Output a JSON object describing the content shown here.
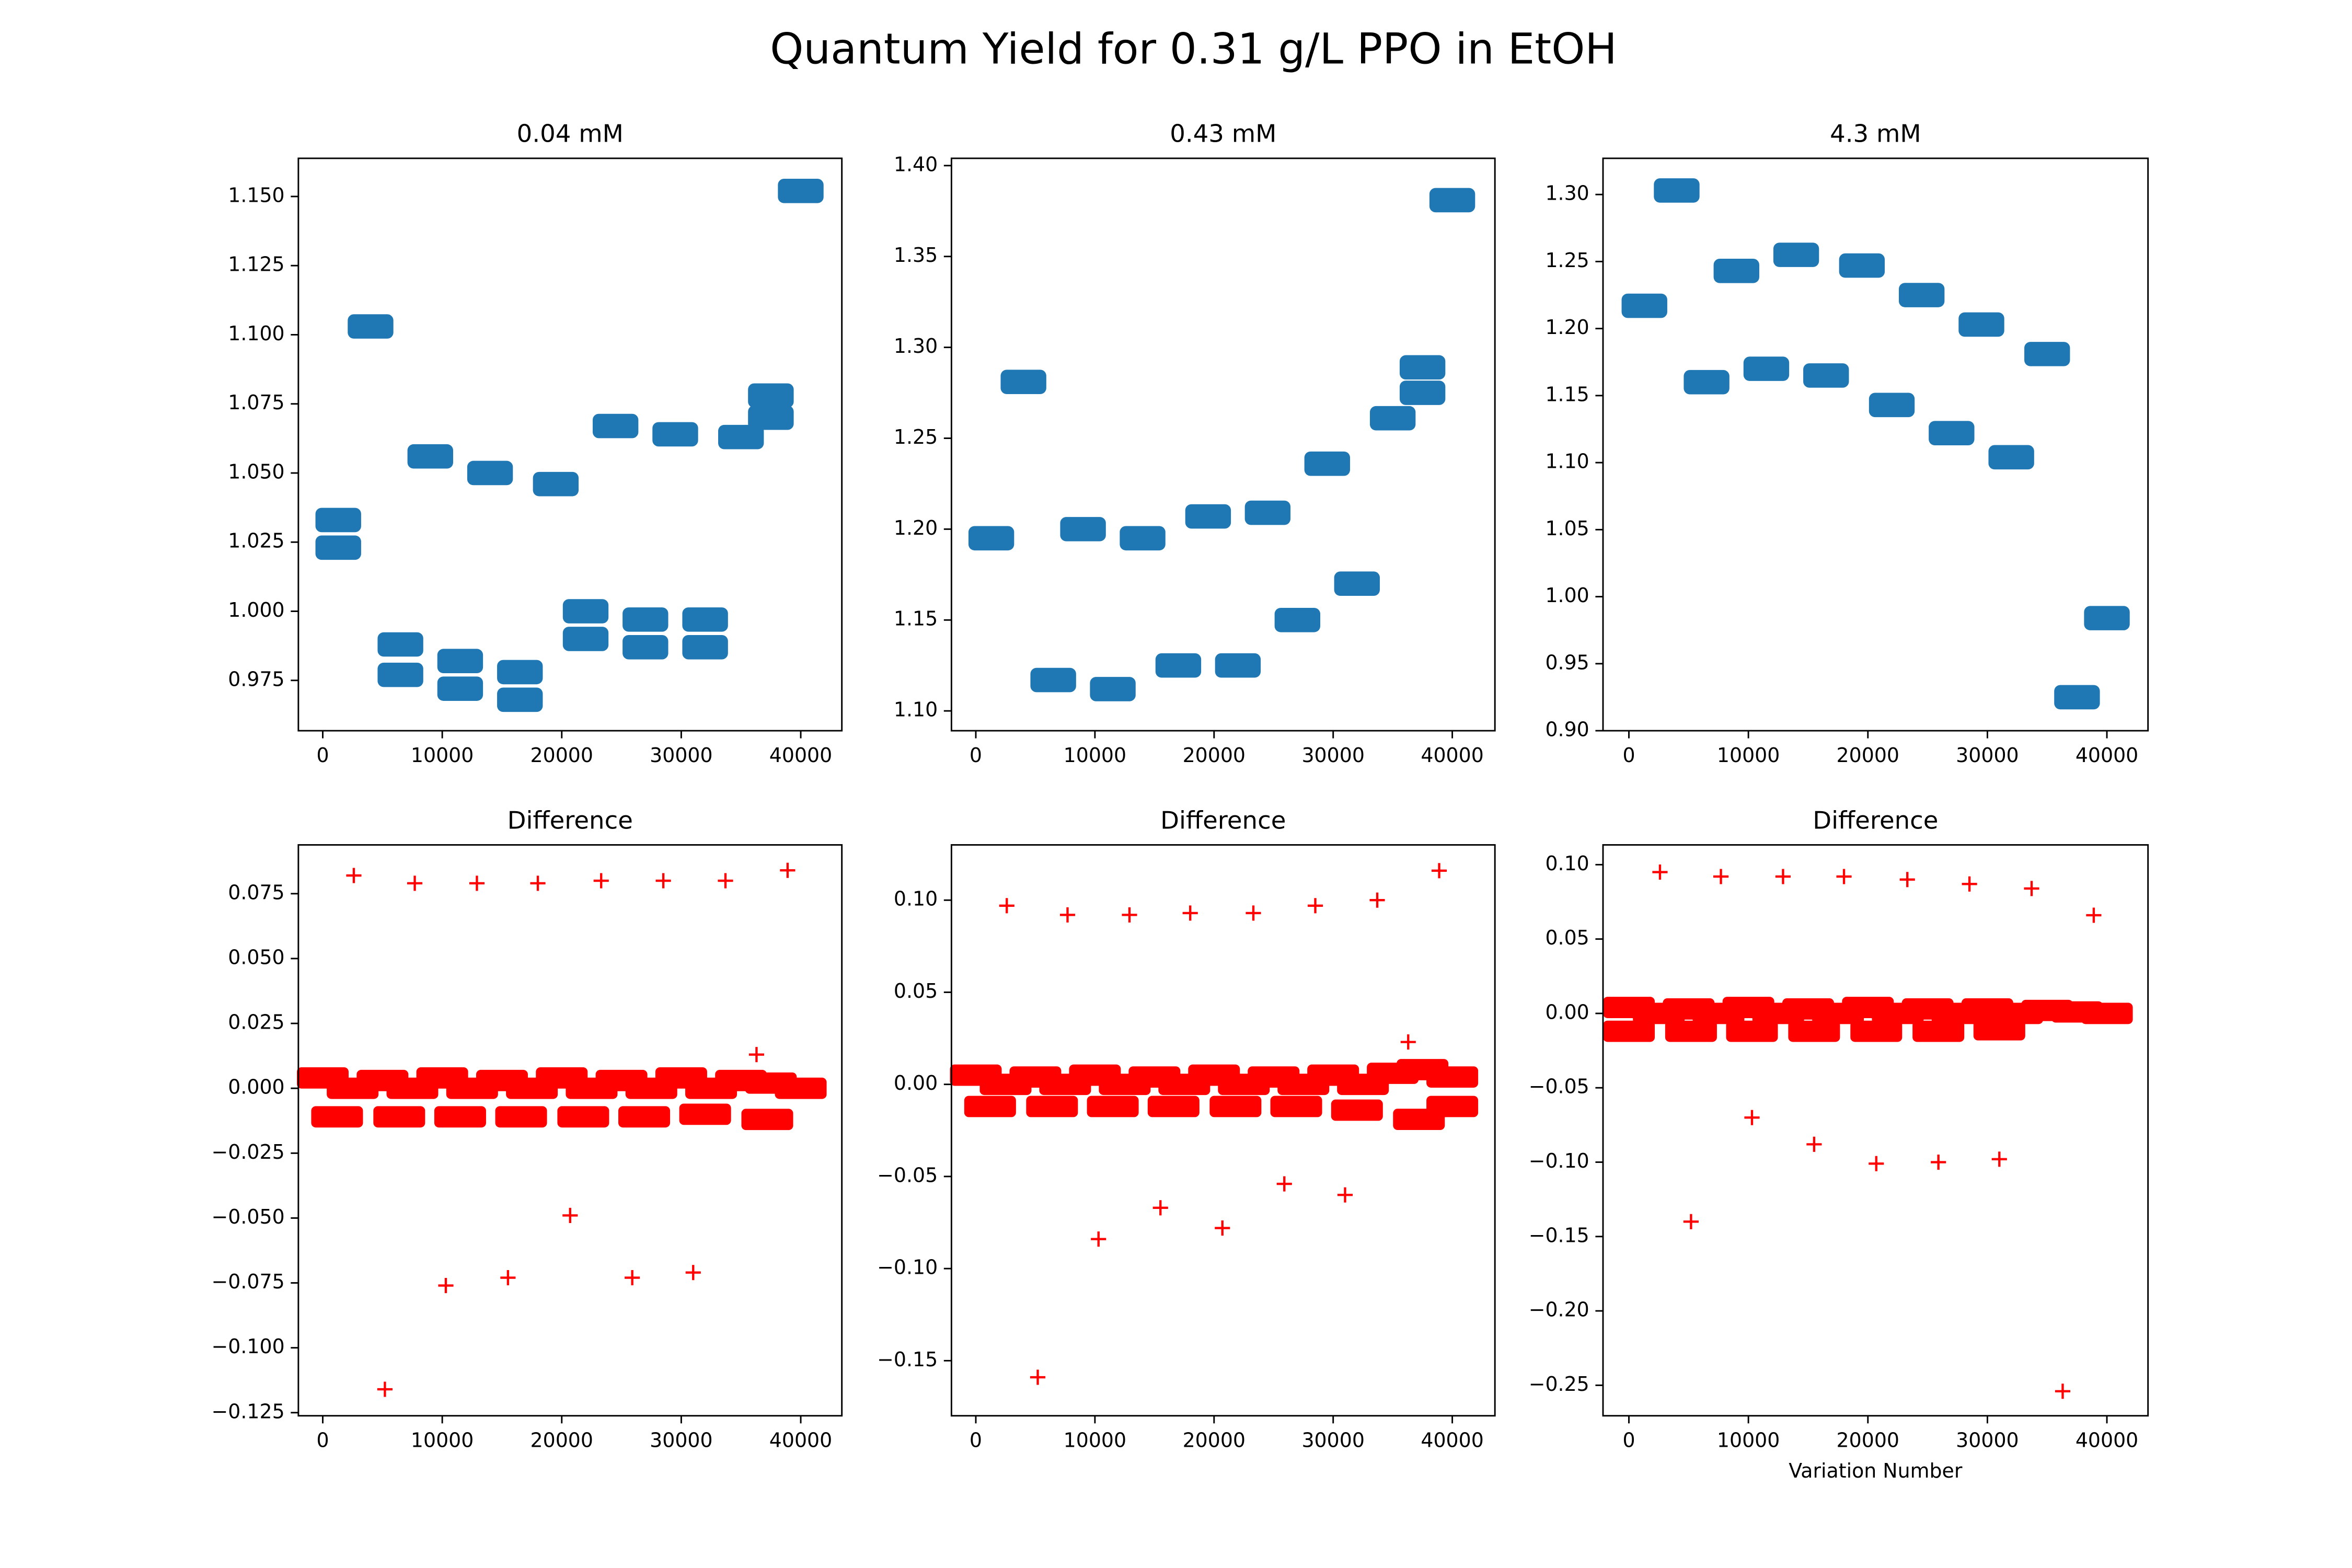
{
  "title": "Quantum Yield for 0.31 g/L PPO in EtOH",
  "chart_data": [
    {
      "type": "scatter",
      "title": "0.04 mM",
      "xlim": [
        -2040,
        43440
      ],
      "ylim": [
        0.9568,
        1.1638
      ],
      "xticks": [
        0,
        10000,
        20000,
        30000,
        40000
      ],
      "yticks": [
        {
          "value": 0.975,
          "label": "0.975"
        },
        {
          "value": 1.0,
          "label": "1.000"
        },
        {
          "value": 1.025,
          "label": "1.025"
        },
        {
          "value": 1.05,
          "label": "1.050"
        },
        {
          "value": 1.075,
          "label": "1.075"
        },
        {
          "value": 1.1,
          "label": "1.100"
        },
        {
          "value": 1.125,
          "label": "1.125"
        },
        {
          "value": 1.15,
          "label": "1.150"
        }
      ],
      "series": [
        {
          "color": "#1f77b4",
          "marker": "blob",
          "x": [
            1300,
            1300,
            4000,
            6500,
            6500,
            9000,
            11500,
            11500,
            14000,
            16500,
            16500,
            19500,
            22000,
            22000,
            24500,
            27000,
            27000,
            29500,
            32000,
            32000,
            35000,
            37500,
            37500,
            40000
          ],
          "values": [
            1.023,
            1.033,
            1.103,
            0.977,
            0.988,
            1.056,
            0.972,
            0.982,
            1.05,
            0.968,
            0.978,
            1.046,
            0.99,
            1.0,
            1.067,
            0.987,
            0.997,
            1.064,
            0.987,
            0.997,
            1.063,
            1.07,
            1.078,
            1.152
          ]
        }
      ]
    },
    {
      "type": "scatter",
      "title": "0.43 mM",
      "xlim": [
        -2045,
        43580
      ],
      "ylim": [
        1.0891,
        1.404
      ],
      "xticks": [
        0,
        10000,
        20000,
        30000,
        40000
      ],
      "yticks": [
        {
          "value": 1.1,
          "label": "1.10"
        },
        {
          "value": 1.15,
          "label": "1.15"
        },
        {
          "value": 1.2,
          "label": "1.20"
        },
        {
          "value": 1.25,
          "label": "1.25"
        },
        {
          "value": 1.3,
          "label": "1.30"
        },
        {
          "value": 1.35,
          "label": "1.35"
        },
        {
          "value": 1.4,
          "label": "1.40"
        }
      ],
      "series": [
        {
          "color": "#1f77b4",
          "marker": "blob",
          "x": [
            1300,
            4000,
            6500,
            9000,
            11500,
            14000,
            17000,
            19500,
            22000,
            24500,
            27000,
            29500,
            32000,
            35000,
            37500,
            37500,
            40000
          ],
          "values": [
            1.195,
            1.281,
            1.117,
            1.2,
            1.112,
            1.195,
            1.125,
            1.207,
            1.125,
            1.209,
            1.15,
            1.236,
            1.17,
            1.261,
            1.275,
            1.289,
            1.381
          ]
        }
      ]
    },
    {
      "type": "scatter",
      "title": "4.3 mM",
      "xlim": [
        -2166,
        43440
      ],
      "ylim": [
        0.9,
        1.327
      ],
      "xticks": [
        0,
        10000,
        20000,
        30000,
        40000
      ],
      "yticks": [
        {
          "value": 0.9,
          "label": "0.90"
        },
        {
          "value": 0.95,
          "label": "0.95"
        },
        {
          "value": 1.0,
          "label": "1.00"
        },
        {
          "value": 1.05,
          "label": "1.05"
        },
        {
          "value": 1.1,
          "label": "1.10"
        },
        {
          "value": 1.15,
          "label": "1.15"
        },
        {
          "value": 1.2,
          "label": "1.20"
        },
        {
          "value": 1.25,
          "label": "1.25"
        },
        {
          "value": 1.3,
          "label": "1.30"
        }
      ],
      "series": [
        {
          "color": "#1f77b4",
          "marker": "blob",
          "x": [
            1300,
            4000,
            6500,
            9000,
            11500,
            14000,
            16500,
            19500,
            22000,
            24500,
            27000,
            29500,
            32000,
            35000,
            37500,
            40000
          ],
          "values": [
            1.217,
            1.303,
            1.16,
            1.243,
            1.17,
            1.255,
            1.165,
            1.247,
            1.143,
            1.225,
            1.122,
            1.203,
            1.104,
            1.181,
            0.925,
            0.984
          ]
        }
      ]
    },
    {
      "type": "scatter",
      "title": "Difference",
      "xlim": [
        -2040,
        43440
      ],
      "ylim": [
        -0.1262,
        0.0938
      ],
      "xticks": [
        0,
        10000,
        20000,
        30000,
        40000
      ],
      "yticks": [
        {
          "value": -0.125,
          "label": "−0.125"
        },
        {
          "value": -0.1,
          "label": "−0.100"
        },
        {
          "value": -0.075,
          "label": "−0.075"
        },
        {
          "value": -0.05,
          "label": "−0.050"
        },
        {
          "value": -0.025,
          "label": "−0.025"
        },
        {
          "value": 0,
          "label": "0.000"
        },
        {
          "value": 0.025,
          "label": "0.025"
        },
        {
          "value": 0.05,
          "label": "0.050"
        },
        {
          "value": 0.075,
          "label": "0.075"
        }
      ],
      "series": [
        {
          "color": "#ff0000",
          "marker": "band",
          "x": [
            0,
            2500,
            5000,
            7500,
            10000,
            12500,
            15000,
            17500,
            20000,
            22500,
            25000,
            27500,
            30000,
            32500,
            35000,
            37500,
            40000
          ],
          "values": [
            0.004,
            0.0,
            0.003,
            0.0,
            0.004,
            0.0,
            0.003,
            0.0,
            0.004,
            0.0,
            0.003,
            0.0,
            0.004,
            0.0,
            0.003,
            0.002,
            0.0
          ]
        },
        {
          "color": "#ff0000",
          "marker": "band",
          "x": [
            1200,
            6400,
            11500,
            16600,
            21800,
            26900,
            32000,
            37200
          ],
          "values": [
            -0.011,
            -0.011,
            -0.011,
            -0.011,
            -0.011,
            -0.011,
            -0.01,
            -0.012
          ]
        },
        {
          "color": "#ff0000",
          "marker": "plus",
          "x": [
            2600,
            5200,
            7700,
            10300,
            12900,
            15500,
            18000,
            20700,
            23300,
            25900,
            28500,
            31000,
            33700,
            36300,
            38900
          ],
          "values": [
            0.082,
            -0.116,
            0.079,
            -0.076,
            0.079,
            -0.073,
            0.079,
            -0.049,
            0.08,
            -0.073,
            0.08,
            -0.071,
            0.08,
            0.013,
            0.084
          ]
        }
      ]
    },
    {
      "type": "scatter",
      "title": "Difference",
      "xlim": [
        -2045,
        43580
      ],
      "ylim": [
        -0.1799,
        0.13
      ],
      "xticks": [
        0,
        10000,
        20000,
        30000,
        40000
      ],
      "yticks": [
        {
          "value": -0.15,
          "label": "−0.15"
        },
        {
          "value": -0.1,
          "label": "−0.10"
        },
        {
          "value": -0.05,
          "label": "−0.05"
        },
        {
          "value": 0,
          "label": "0.00"
        },
        {
          "value": 0.05,
          "label": "0.05"
        },
        {
          "value": 0.1,
          "label": "0.10"
        }
      ],
      "series": [
        {
          "color": "#ff0000",
          "marker": "band",
          "x": [
            0,
            2500,
            5000,
            7500,
            10000,
            12500,
            15000,
            17500,
            20000,
            22500,
            25000,
            27500,
            30000,
            32500,
            35000,
            37500,
            40000
          ],
          "values": [
            0.005,
            0.0,
            0.004,
            0.0,
            0.005,
            0.0,
            0.004,
            0.0,
            0.005,
            0.0,
            0.004,
            0.0,
            0.005,
            0.0,
            0.006,
            0.008,
            0.004
          ]
        },
        {
          "color": "#ff0000",
          "marker": "band",
          "x": [
            1200,
            6400,
            11500,
            16600,
            21800,
            26900,
            32000,
            37200,
            40000
          ],
          "values": [
            -0.012,
            -0.012,
            -0.012,
            -0.012,
            -0.012,
            -0.012,
            -0.014,
            -0.019,
            -0.012
          ]
        },
        {
          "color": "#ff0000",
          "marker": "plus",
          "x": [
            2600,
            5200,
            7700,
            10300,
            12900,
            15500,
            18000,
            20700,
            23300,
            25900,
            28500,
            31000,
            33700,
            36300,
            38900
          ],
          "values": [
            0.097,
            -0.159,
            0.092,
            -0.084,
            0.092,
            -0.067,
            0.093,
            -0.078,
            0.093,
            -0.054,
            0.097,
            -0.06,
            0.1,
            0.023,
            0.116
          ]
        }
      ]
    },
    {
      "type": "scatter",
      "title": "Difference",
      "xlabel": "Variation Number",
      "xlim": [
        -2166,
        43440
      ],
      "ylim": [
        -0.2705,
        0.1133
      ],
      "xticks": [
        0,
        10000,
        20000,
        30000,
        40000
      ],
      "yticks": [
        {
          "value": -0.25,
          "label": "−0.25"
        },
        {
          "value": -0.2,
          "label": "−0.20"
        },
        {
          "value": -0.15,
          "label": "−0.15"
        },
        {
          "value": -0.1,
          "label": "−0.10"
        },
        {
          "value": -0.05,
          "label": "−0.05"
        },
        {
          "value": 0,
          "label": "0.00"
        },
        {
          "value": 0.05,
          "label": "0.05"
        },
        {
          "value": 0.1,
          "label": "0.10"
        }
      ],
      "series": [
        {
          "color": "#ff0000",
          "marker": "band",
          "x": [
            0,
            2500,
            5000,
            7500,
            10000,
            12500,
            15000,
            17500,
            20000,
            22500,
            25000,
            27500,
            30000,
            32500,
            35000,
            37500,
            40000
          ],
          "values": [
            0.004,
            0.0,
            0.003,
            0.0,
            0.004,
            0.0,
            0.003,
            0.0,
            0.004,
            0.0,
            0.003,
            0.0,
            0.003,
            0.0,
            0.002,
            0.001,
            0.0
          ]
        },
        {
          "color": "#ff0000",
          "marker": "band",
          "x": [
            0,
            5200,
            10300,
            15500,
            20700,
            25900,
            31000
          ],
          "values": [
            -0.012,
            -0.012,
            -0.012,
            -0.012,
            -0.012,
            -0.012,
            -0.011
          ]
        },
        {
          "color": "#ff0000",
          "marker": "plus",
          "x": [
            2600,
            5200,
            7700,
            10300,
            12900,
            15500,
            18000,
            20700,
            23300,
            25900,
            28500,
            31000,
            33700,
            36300,
            38900
          ],
          "values": [
            0.095,
            -0.14,
            0.092,
            -0.07,
            0.092,
            -0.088,
            0.092,
            -0.101,
            0.09,
            -0.1,
            0.087,
            -0.098,
            0.084,
            -0.254,
            0.066
          ]
        }
      ]
    }
  ]
}
